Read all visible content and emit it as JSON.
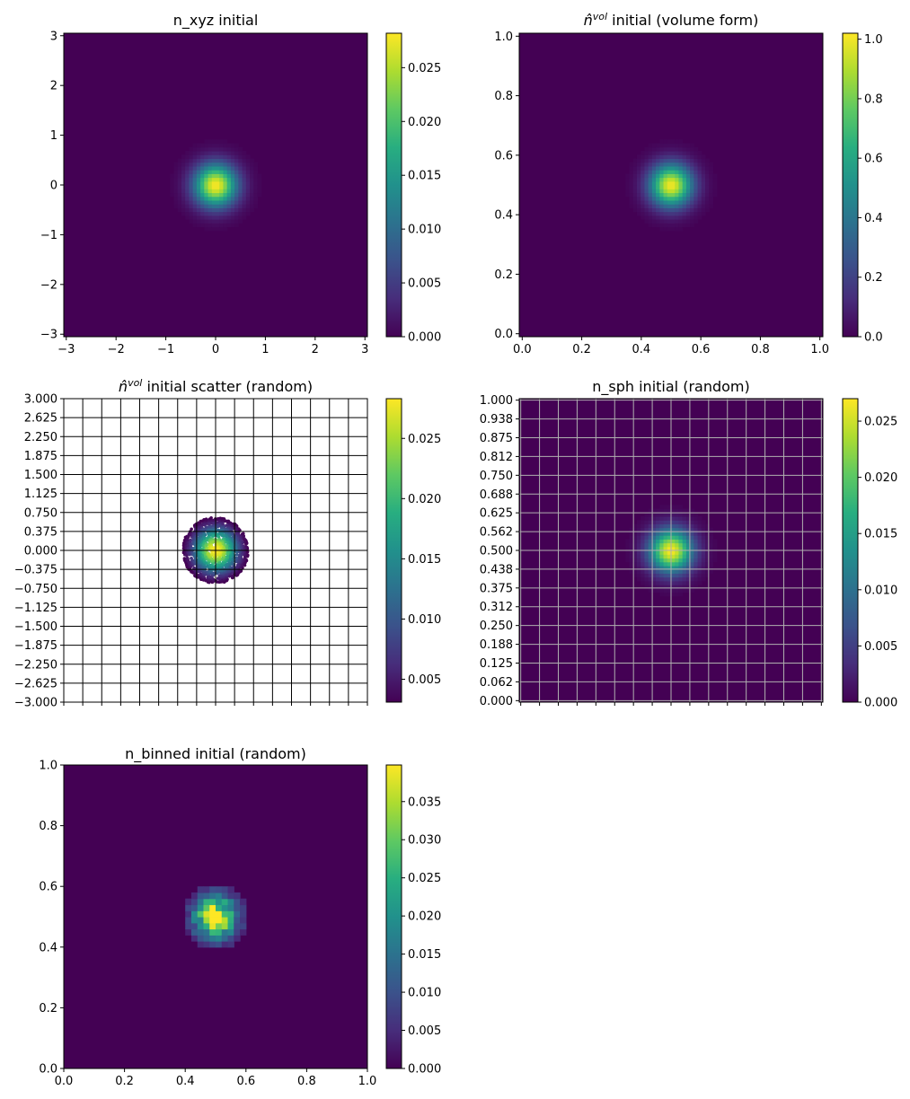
{
  "chart_data": [
    {
      "type": "heatmap",
      "title": "n_xyz initial",
      "xlim": [
        -3.05,
        3.05
      ],
      "ylim": [
        -3.05,
        3.05
      ],
      "xticks": [
        -3,
        -2,
        -1,
        0,
        1,
        2,
        3
      ],
      "xtick_labels": [
        "−3",
        "−2",
        "−1",
        "0",
        "1",
        "2",
        "3"
      ],
      "yticks": [
        -3,
        -2,
        -1,
        0,
        1,
        2,
        3
      ],
      "ytick_labels": [
        "−3",
        "−2",
        "−1",
        "0",
        "1",
        "2",
        "3"
      ],
      "field": {
        "center": [
          0,
          0
        ],
        "sigma": 0.3,
        "peak": 0.028
      },
      "grid": false,
      "colorbar": {
        "vmin": 0,
        "vmax": 0.0282,
        "ticks": [
          0,
          0.005,
          0.01,
          0.015,
          0.02,
          0.025
        ],
        "tick_labels": [
          "0.000",
          "0.005",
          "0.010",
          "0.015",
          "0.020",
          "0.025"
        ]
      }
    },
    {
      "type": "heatmap",
      "title_prefix": "n̂",
      "title_sup": "vol",
      "title_suffix": " initial (volume form)",
      "xlim": [
        -0.01,
        1.01
      ],
      "ylim": [
        -0.01,
        1.01
      ],
      "xticks": [
        0,
        0.2,
        0.4,
        0.6,
        0.8,
        1.0
      ],
      "xtick_labels": [
        "0.0",
        "0.2",
        "0.4",
        "0.6",
        "0.8",
        "1.0"
      ],
      "yticks": [
        0,
        0.2,
        0.4,
        0.6,
        0.8,
        1.0
      ],
      "ytick_labels": [
        "0.0",
        "0.2",
        "0.4",
        "0.6",
        "0.8",
        "1.0"
      ],
      "field": {
        "center": [
          0.5,
          0.5
        ],
        "sigma": 0.05,
        "peak": 1.0
      },
      "grid": false,
      "colorbar": {
        "vmin": 0,
        "vmax": 1.02,
        "ticks": [
          0,
          0.2,
          0.4,
          0.6,
          0.8,
          1.0
        ],
        "tick_labels": [
          "0.0",
          "0.2",
          "0.4",
          "0.6",
          "0.8",
          "1.0"
        ]
      }
    },
    {
      "type": "scatter",
      "title_prefix": "n̂",
      "title_sup": "vol",
      "title_suffix": " initial scatter (random)",
      "xlim": [
        -3,
        3
      ],
      "ylim": [
        -3,
        3
      ],
      "background": "#ffffff",
      "grid": true,
      "grid_color": "#000000",
      "xticks": [
        -3,
        -2.625,
        -2.25,
        -1.875,
        -1.5,
        -1.125,
        -0.75,
        -0.375,
        0,
        0.375,
        0.75,
        1.125,
        1.5,
        1.875,
        2.25,
        2.625,
        3
      ],
      "xtick_labels": [],
      "yticks": [
        -3,
        -2.625,
        -2.25,
        -1.875,
        -1.5,
        -1.125,
        -0.75,
        -0.375,
        0,
        0.375,
        0.75,
        1.125,
        1.5,
        1.875,
        2.25,
        2.625,
        3
      ],
      "ytick_labels": [
        "−3.000",
        "−2.625",
        "−2.250",
        "−1.875",
        "−1.500",
        "−1.125",
        "−0.750",
        "−0.375",
        "0.000",
        "0.375",
        "0.750",
        "1.125",
        "1.500",
        "1.875",
        "2.250",
        "2.625",
        "3.000"
      ],
      "points": {
        "center": [
          0,
          0
        ],
        "radius": 0.65,
        "sigma": 0.3,
        "peak": 0.0283,
        "count": 1400
      },
      "colorbar": {
        "vmin": 0.0031,
        "vmax": 0.0283,
        "ticks": [
          0.005,
          0.01,
          0.015,
          0.02,
          0.025
        ],
        "tick_labels": [
          "0.005",
          "0.010",
          "0.015",
          "0.020",
          "0.025"
        ]
      }
    },
    {
      "type": "heatmap",
      "title": "n_sph initial (random)",
      "xlim": [
        -0.005,
        1.005
      ],
      "ylim": [
        -0.005,
        1.005
      ],
      "grid": true,
      "grid_color": "#b0b0b0",
      "xticks": [
        0,
        0.0625,
        0.125,
        0.1875,
        0.25,
        0.3125,
        0.375,
        0.4375,
        0.5,
        0.5625,
        0.625,
        0.6875,
        0.75,
        0.8125,
        0.875,
        0.9375,
        1.0
      ],
      "xtick_labels": [],
      "yticks": [
        0,
        0.0625,
        0.125,
        0.1875,
        0.25,
        0.3125,
        0.375,
        0.4375,
        0.5,
        0.5625,
        0.625,
        0.6875,
        0.75,
        0.8125,
        0.875,
        0.9375,
        1.0
      ],
      "ytick_labels": [
        "0.000",
        "0.062",
        "0.125",
        "0.188",
        "0.250",
        "0.312",
        "0.375",
        "0.438",
        "0.500",
        "0.562",
        "0.625",
        "0.688",
        "0.750",
        "0.812",
        "0.875",
        "0.938",
        "1.000"
      ],
      "field": {
        "center": [
          0.5,
          0.5
        ],
        "sigma": 0.05,
        "peak": 0.0268
      },
      "colorbar": {
        "vmin": 0,
        "vmax": 0.027,
        "ticks": [
          0,
          0.005,
          0.01,
          0.015,
          0.02,
          0.025
        ],
        "tick_labels": [
          "0.000",
          "0.005",
          "0.010",
          "0.015",
          "0.020",
          "0.025"
        ]
      }
    },
    {
      "type": "heatmap",
      "title": "n_binned initial (random)",
      "xlim": [
        0,
        1
      ],
      "ylim": [
        0,
        1
      ],
      "grid": false,
      "xticks": [
        0,
        0.2,
        0.4,
        0.6,
        0.8,
        1.0
      ],
      "xtick_labels": [
        "0.0",
        "0.2",
        "0.4",
        "0.6",
        "0.8",
        "1.0"
      ],
      "yticks": [
        0,
        0.2,
        0.4,
        0.6,
        0.8,
        1.0
      ],
      "ytick_labels": [
        "0.0",
        "0.2",
        "0.4",
        "0.6",
        "0.8",
        "1.0"
      ],
      "bins": 50,
      "field": {
        "center": [
          0.5,
          0.5
        ],
        "radius": 0.105,
        "sigma": 0.05,
        "peak": 0.0398
      },
      "colorbar": {
        "vmin": 0,
        "vmax": 0.0398,
        "ticks": [
          0,
          0.005,
          0.01,
          0.015,
          0.02,
          0.025,
          0.03,
          0.035
        ],
        "tick_labels": [
          "0.000",
          "0.005",
          "0.010",
          "0.015",
          "0.020",
          "0.025",
          "0.030",
          "0.035"
        ]
      }
    }
  ]
}
